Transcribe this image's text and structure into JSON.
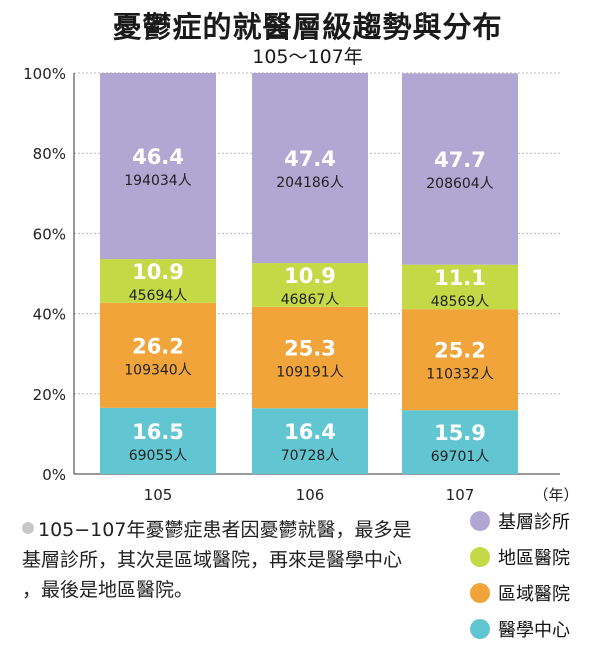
{
  "title": "憂鬱症的就醫層級趨勢與分布",
  "subtitle": "105～107年",
  "x_unit": "（年）",
  "note": "105−107年憂鬱症患者因憂鬱就醫，最多是基層診所，其次是區域醫院，再來是醫學中心 ，最後是地區醫院。",
  "colors": {
    "clinic": "#b1a7d3",
    "district": "#c3d946",
    "regional": "#f0a43a",
    "medical_center": "#62c6d2",
    "axis": "#333333",
    "grid": "#b8b8b8"
  },
  "legend": [
    {
      "label": "基層診所",
      "color": "#b1a7d3"
    },
    {
      "label": "地區醫院",
      "color": "#c3d946"
    },
    {
      "label": "區域醫院",
      "color": "#f0a43a"
    },
    {
      "label": "醫學中心",
      "color": "#62c6d2"
    }
  ],
  "chart_data": {
    "type": "bar",
    "stacked": true,
    "title": "憂鬱症的就醫層級趨勢與分布",
    "subtitle": "105～107年",
    "xlabel": "（年）",
    "ylabel": "",
    "categories": [
      "105",
      "106",
      "107"
    ],
    "ylim": [
      0,
      100
    ],
    "yticks": [
      "0%",
      "20%",
      "40%",
      "60%",
      "80%",
      "100%"
    ],
    "grid": true,
    "legend_position": "bottom-right",
    "series": [
      {
        "name": "醫學中心",
        "values": [
          16.5,
          16.4,
          15.9
        ],
        "counts": [
          "69055人",
          "70728人",
          "69701人"
        ]
      },
      {
        "name": "區域醫院",
        "values": [
          26.2,
          25.3,
          25.2
        ],
        "counts": [
          "109340人",
          "109191人",
          "110332人"
        ]
      },
      {
        "name": "地區醫院",
        "values": [
          10.9,
          10.9,
          11.1
        ],
        "counts": [
          "45694人",
          "46867人",
          "48569人"
        ]
      },
      {
        "name": "基層診所",
        "values": [
          46.4,
          47.4,
          47.7
        ],
        "counts": [
          "194034人",
          "204186人",
          "208604人"
        ]
      }
    ]
  }
}
